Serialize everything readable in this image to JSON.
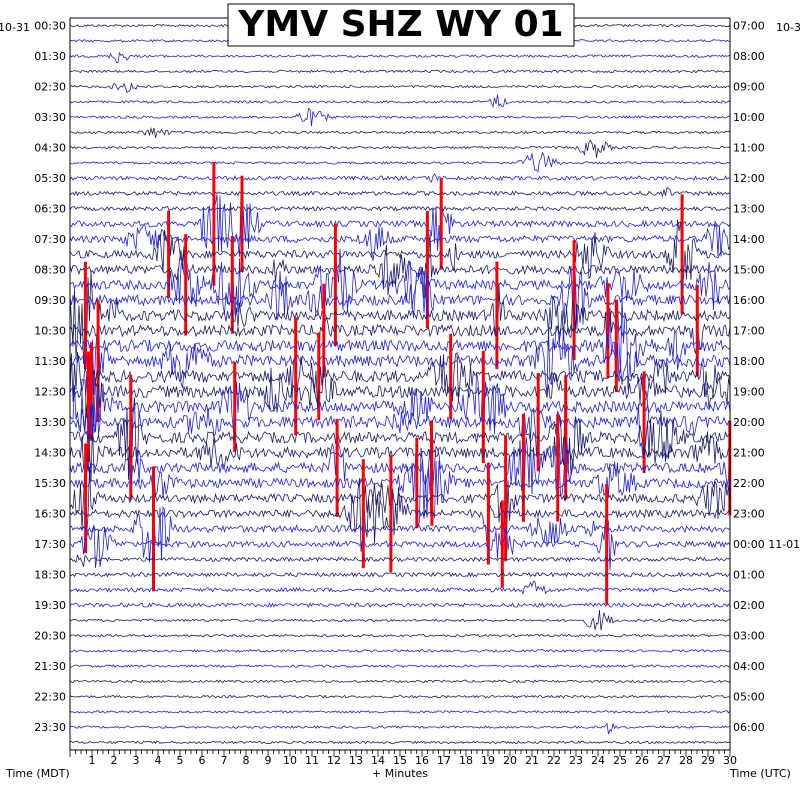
{
  "chart_data": {
    "type": "helicorder",
    "title": "YMV SHZ WY 01",
    "left_axis_label": "Time (MDT)",
    "right_axis_label": "Time (UTC)",
    "x_axis_label": "+ Minutes",
    "date_left": "10-31",
    "date_right": "10-3",
    "x_ticks": [
      "1",
      "2",
      "3",
      "4",
      "5",
      "6",
      "7",
      "8",
      "9",
      "10",
      "11",
      "12",
      "13",
      "14",
      "15",
      "16",
      "17",
      "18",
      "19",
      "20",
      "21",
      "22",
      "23",
      "24",
      "25",
      "26",
      "27",
      "28",
      "29",
      "30"
    ],
    "x_range_minutes": [
      0,
      30
    ],
    "rows_per_hour": 2,
    "left_times": [
      "00:30",
      "01:30",
      "02:30",
      "03:30",
      "04:30",
      "05:30",
      "06:30",
      "07:30",
      "08:30",
      "09:30",
      "10:30",
      "11:30",
      "12:30",
      "13:30",
      "14:30",
      "15:30",
      "16:30",
      "17:30",
      "18:30",
      "19:30",
      "20:30",
      "21:30",
      "22:30",
      "23:30"
    ],
    "right_times": [
      "07:00",
      "08:00",
      "09:00",
      "10:00",
      "11:00",
      "12:00",
      "13:00",
      "14:00",
      "15:00",
      "16:00",
      "17:00",
      "18:00",
      "19:00",
      "20:00",
      "21:00",
      "22:00",
      "23:00",
      "00:00 11-01",
      "01:00",
      "02:00",
      "03:00",
      "04:00",
      "05:00",
      "06:00"
    ],
    "trace_colors": [
      "#1a1a6e",
      "#1f1fe0"
    ],
    "clip_color": "#ff0000",
    "activity_note_rows": "high amplitude activity between 06:00 and 17:00 MDT"
  }
}
